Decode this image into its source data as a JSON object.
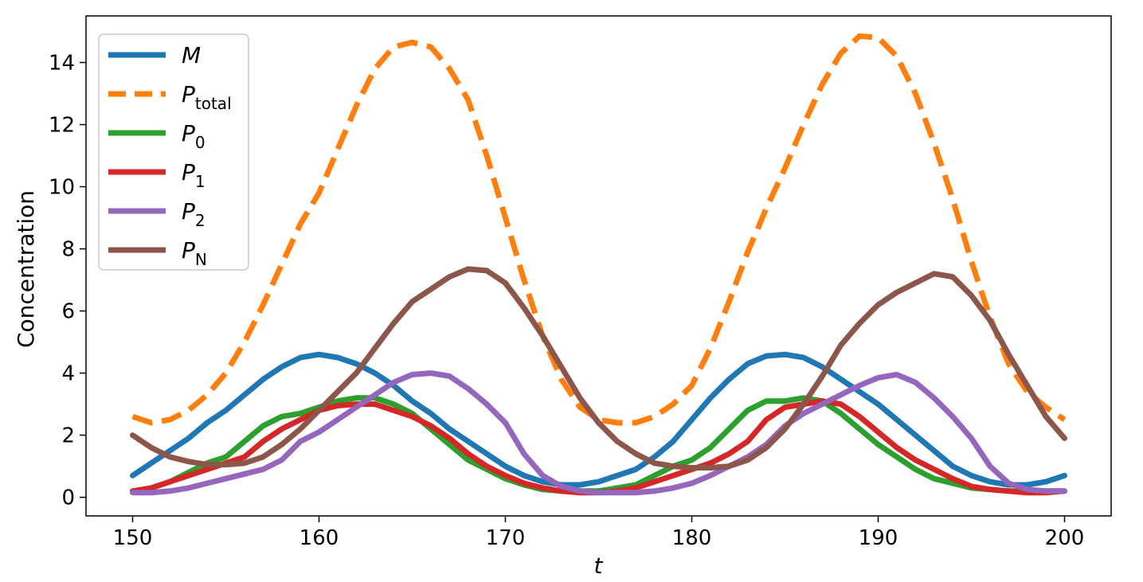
{
  "chart_data": {
    "type": "line",
    "xlabel": "t",
    "ylabel": "Concentration",
    "xlim": [
      147.5,
      202.5
    ],
    "ylim": [
      -0.6,
      15.5
    ],
    "xticks": [
      150,
      160,
      170,
      180,
      190,
      200
    ],
    "yticks": [
      0,
      2,
      4,
      6,
      8,
      10,
      12,
      14
    ],
    "grid": false,
    "legend_position": "top-left",
    "series": [
      {
        "name": "M",
        "name_main": "M",
        "name_sub": "",
        "color": "#1f77b4",
        "dash": "solid",
        "x": [
          150,
          151,
          152,
          153,
          154,
          155,
          156,
          157,
          158,
          159,
          160,
          161,
          162,
          163,
          164,
          165,
          166,
          167,
          168,
          169,
          170,
          171,
          172,
          173,
          174,
          175,
          176,
          177,
          178,
          179,
          180,
          181,
          182,
          183,
          184,
          185,
          186,
          187,
          188,
          189,
          190,
          191,
          192,
          193,
          194,
          195,
          196,
          197,
          198,
          199,
          200
        ],
        "y": [
          0.7,
          1.1,
          1.5,
          1.9,
          2.4,
          2.8,
          3.3,
          3.8,
          4.2,
          4.5,
          4.6,
          4.5,
          4.3,
          4.0,
          3.6,
          3.1,
          2.7,
          2.2,
          1.8,
          1.4,
          1.0,
          0.7,
          0.5,
          0.4,
          0.4,
          0.5,
          0.7,
          0.9,
          1.3,
          1.8,
          2.5,
          3.2,
          3.8,
          4.3,
          4.55,
          4.6,
          4.5,
          4.2,
          3.8,
          3.4,
          3.0,
          2.5,
          2.0,
          1.5,
          1.0,
          0.7,
          0.5,
          0.4,
          0.4,
          0.5,
          0.7
        ]
      },
      {
        "name": "P_total",
        "name_main": "P",
        "name_sub": "total",
        "color": "#ff7f0e",
        "dash": "dashed",
        "x": [
          150,
          151,
          152,
          153,
          154,
          155,
          156,
          157,
          158,
          159,
          160,
          161,
          162,
          163,
          164,
          165,
          166,
          167,
          168,
          169,
          170,
          171,
          172,
          173,
          174,
          175,
          176,
          177,
          178,
          179,
          180,
          181,
          182,
          183,
          184,
          185,
          186,
          187,
          188,
          189,
          190,
          191,
          192,
          193,
          194,
          195,
          196,
          197,
          198,
          199,
          200
        ],
        "y": [
          2.6,
          2.4,
          2.5,
          2.8,
          3.3,
          4.0,
          5.0,
          6.2,
          7.5,
          8.8,
          9.8,
          11.2,
          12.6,
          13.8,
          14.5,
          14.65,
          14.5,
          13.8,
          12.8,
          11.0,
          9.0,
          7.0,
          5.2,
          3.8,
          2.9,
          2.5,
          2.4,
          2.4,
          2.6,
          3.0,
          3.6,
          4.8,
          6.3,
          7.9,
          9.3,
          10.6,
          12.0,
          13.3,
          14.3,
          14.85,
          14.8,
          14.2,
          13.0,
          11.4,
          9.6,
          7.6,
          5.8,
          4.3,
          3.4,
          2.9,
          2.5
        ]
      },
      {
        "name": "P_0",
        "name_main": "P",
        "name_sub": "0",
        "color": "#2ca02c",
        "dash": "solid",
        "x": [
          150,
          151,
          152,
          153,
          154,
          155,
          156,
          157,
          158,
          159,
          160,
          161,
          162,
          163,
          164,
          165,
          166,
          167,
          168,
          169,
          170,
          171,
          172,
          173,
          174,
          175,
          176,
          177,
          178,
          179,
          180,
          181,
          182,
          183,
          184,
          185,
          186,
          187,
          188,
          189,
          190,
          191,
          192,
          193,
          194,
          195,
          196,
          197,
          198,
          199,
          200
        ],
        "y": [
          0.2,
          0.3,
          0.5,
          0.8,
          1.1,
          1.3,
          1.8,
          2.3,
          2.6,
          2.7,
          2.9,
          3.1,
          3.2,
          3.2,
          3.0,
          2.7,
          2.2,
          1.7,
          1.2,
          0.9,
          0.6,
          0.4,
          0.25,
          0.2,
          0.2,
          0.2,
          0.3,
          0.4,
          0.7,
          1.0,
          1.2,
          1.6,
          2.2,
          2.8,
          3.1,
          3.1,
          3.2,
          3.1,
          2.7,
          2.2,
          1.7,
          1.3,
          0.9,
          0.6,
          0.45,
          0.3,
          0.25,
          0.2,
          0.2,
          0.2,
          0.2
        ]
      },
      {
        "name": "P_1",
        "name_main": "P",
        "name_sub": "1",
        "color": "#d62728",
        "dash": "solid",
        "x": [
          150,
          151,
          152,
          153,
          154,
          155,
          156,
          157,
          158,
          159,
          160,
          161,
          162,
          163,
          164,
          165,
          166,
          167,
          168,
          169,
          170,
          171,
          172,
          173,
          174,
          175,
          176,
          177,
          178,
          179,
          180,
          181,
          182,
          183,
          184,
          185,
          186,
          187,
          188,
          189,
          190,
          191,
          192,
          193,
          194,
          195,
          196,
          197,
          198,
          199,
          200
        ],
        "y": [
          0.2,
          0.3,
          0.5,
          0.7,
          0.9,
          1.1,
          1.3,
          1.8,
          2.2,
          2.5,
          2.8,
          2.95,
          3.0,
          3.0,
          2.8,
          2.6,
          2.3,
          1.9,
          1.4,
          1.0,
          0.7,
          0.45,
          0.3,
          0.2,
          0.15,
          0.15,
          0.2,
          0.3,
          0.5,
          0.7,
          0.9,
          1.1,
          1.4,
          1.8,
          2.5,
          2.9,
          3.0,
          3.1,
          3.0,
          2.6,
          2.1,
          1.6,
          1.2,
          0.9,
          0.6,
          0.35,
          0.25,
          0.2,
          0.15,
          0.15,
          0.2
        ]
      },
      {
        "name": "P_2",
        "name_main": "P",
        "name_sub": "2",
        "color": "#9467bd",
        "dash": "solid",
        "x": [
          150,
          151,
          152,
          153,
          154,
          155,
          156,
          157,
          158,
          159,
          160,
          161,
          162,
          163,
          164,
          165,
          166,
          167,
          168,
          169,
          170,
          171,
          172,
          173,
          174,
          175,
          176,
          177,
          178,
          179,
          180,
          181,
          182,
          183,
          184,
          185,
          186,
          187,
          188,
          189,
          190,
          191,
          192,
          193,
          194,
          195,
          196,
          197,
          198,
          199,
          200
        ],
        "y": [
          0.15,
          0.15,
          0.2,
          0.3,
          0.45,
          0.6,
          0.75,
          0.9,
          1.2,
          1.8,
          2.1,
          2.5,
          2.9,
          3.3,
          3.7,
          3.95,
          4.0,
          3.9,
          3.5,
          3.0,
          2.4,
          1.4,
          0.7,
          0.35,
          0.2,
          0.15,
          0.15,
          0.15,
          0.2,
          0.3,
          0.45,
          0.7,
          1.0,
          1.3,
          1.7,
          2.3,
          2.7,
          3.0,
          3.3,
          3.6,
          3.85,
          3.95,
          3.7,
          3.2,
          2.6,
          1.9,
          1.0,
          0.45,
          0.25,
          0.2,
          0.2
        ]
      },
      {
        "name": "P_N",
        "name_main": "P",
        "name_sub": "N",
        "color": "#8c564b",
        "dash": "solid",
        "x": [
          150,
          151,
          152,
          153,
          154,
          155,
          156,
          157,
          158,
          159,
          160,
          161,
          162,
          163,
          164,
          165,
          166,
          167,
          168,
          169,
          170,
          171,
          172,
          173,
          174,
          175,
          176,
          177,
          178,
          179,
          180,
          181,
          182,
          183,
          184,
          185,
          186,
          187,
          188,
          189,
          190,
          191,
          192,
          193,
          194,
          195,
          196,
          197,
          198,
          199,
          200
        ],
        "y": [
          2.0,
          1.6,
          1.3,
          1.15,
          1.05,
          1.05,
          1.1,
          1.3,
          1.7,
          2.2,
          2.8,
          3.4,
          4.0,
          4.8,
          5.6,
          6.3,
          6.7,
          7.1,
          7.35,
          7.3,
          6.9,
          6.1,
          5.2,
          4.2,
          3.2,
          2.4,
          1.8,
          1.4,
          1.1,
          1.0,
          0.95,
          0.95,
          1.0,
          1.2,
          1.6,
          2.2,
          3.0,
          3.9,
          4.9,
          5.6,
          6.2,
          6.6,
          6.9,
          7.2,
          7.1,
          6.5,
          5.7,
          4.6,
          3.6,
          2.6,
          1.9
        ]
      }
    ]
  }
}
